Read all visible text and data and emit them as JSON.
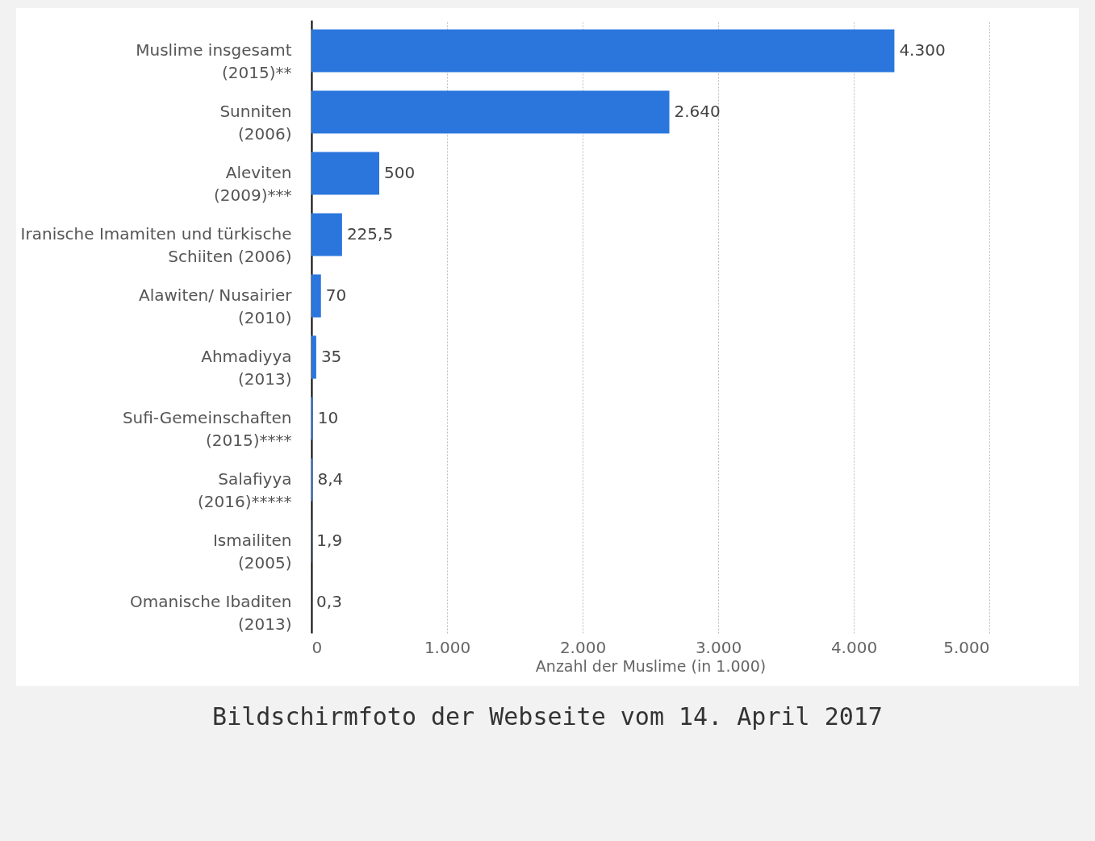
{
  "chart_data": {
    "type": "bar",
    "orientation": "horizontal",
    "categories": [
      "Muslime insgesamt (2015)**",
      "Sunniten (2006)",
      "Aleviten (2009)***",
      "Iranische Imamiten und türkische Schiiten (2006)",
      "Alawiten/ Nusairier (2010)",
      "Ahmadiyya (2013)",
      "Sufi-Gemeinschaften (2015)****",
      "Salafiyya (2016)*****",
      "Ismailiten (2005)",
      "Omanische Ibaditen (2013)"
    ],
    "values": [
      4300,
      2640,
      500,
      225.5,
      70,
      35,
      10,
      8.4,
      1.9,
      0.3
    ],
    "value_labels": [
      "4.300",
      "2.640",
      "500",
      "225,5",
      "70",
      "35",
      "10",
      "8,4",
      "1,9",
      "0,3"
    ],
    "color": "#2a76dd",
    "xlim": [
      0,
      5000
    ],
    "xticks": [
      0,
      {
        "value": 1000,
        "label": "1.000"
      },
      {
        "value": 2000,
        "label": "2.000"
      },
      {
        "value": 3000,
        "label": "3.000"
      },
      {
        "value": 4000,
        "label": "4.000"
      },
      {
        "value": 5000,
        "label": "5.000"
      }
    ],
    "xlabel": "Anzahl der Muslime (in 1.000)",
    "grid": "x",
    "annotations": [
      "Bildschirmfoto der Webseite vom 14. April 2017"
    ]
  }
}
